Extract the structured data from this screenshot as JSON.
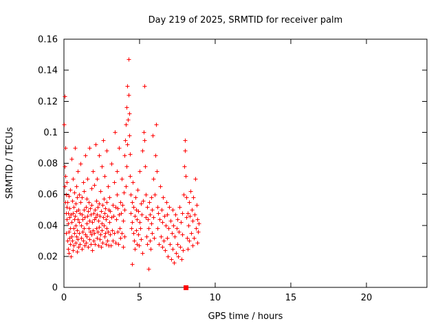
{
  "chart": {
    "title": "Day 219 of 2025, SRMTID for receiver palm",
    "xlabel": "GPS time / hours",
    "ylabel": "SRMTID / TECUs"
  },
  "chart_data": {
    "type": "scatter",
    "title": "Day 219 of 2025, SRMTID for receiver palm",
    "xlabel": "GPS time / hours",
    "ylabel": "SRMTID / TECUs",
    "xlim": [
      0,
      24
    ],
    "ylim": [
      0,
      0.16
    ],
    "xtick_values": [
      0,
      5,
      10,
      15,
      20
    ],
    "xtick_labels": [
      "0",
      "5",
      "10",
      "15",
      "20"
    ],
    "ytick_values": [
      0,
      0.02,
      0.04,
      0.06,
      0.08,
      0.1,
      0.12,
      0.14,
      0.16
    ],
    "ytick_labels": [
      "0",
      "0.02",
      "0.04",
      "0.06",
      "0.08",
      "0.1",
      "0.12",
      "0.14",
      "0.16"
    ],
    "grid": false,
    "legend": "none",
    "marker": "plus",
    "marker_color": "#ff0000",
    "square_points": [
      [
        8.05,
        0
      ]
    ],
    "points": [
      [
        0.02,
        0.105
      ],
      [
        0.03,
        0.123
      ],
      [
        0.05,
        0.078
      ],
      [
        0.06,
        0.065
      ],
      [
        0.08,
        0.055
      ],
      [
        0.09,
        0.09
      ],
      [
        0.1,
        0.072
      ],
      [
        0.12,
        0.048
      ],
      [
        0.13,
        0.06
      ],
      [
        0.15,
        0.035
      ],
      [
        0.16,
        0.052
      ],
      [
        0.18,
        0.044
      ],
      [
        0.2,
        0.068
      ],
      [
        0.21,
        0.03
      ],
      [
        0.23,
        0.055
      ],
      [
        0.25,
        0.041
      ],
      [
        0.26,
        0.025
      ],
      [
        0.28,
        0.048
      ],
      [
        0.3,
        0.036
      ],
      [
        0.32,
        0.059
      ],
      [
        0.33,
        0.022
      ],
      [
        0.35,
        0.045
      ],
      [
        0.37,
        0.032
      ],
      [
        0.38,
        0.051
      ],
      [
        0.4,
        0.028
      ],
      [
        0.42,
        0.063
      ],
      [
        0.43,
        0.038
      ],
      [
        0.45,
        0.047
      ],
      [
        0.47,
        0.02
      ],
      [
        0.48,
        0.033
      ],
      [
        0.5,
        0.083
      ],
      [
        0.52,
        0.042
      ],
      [
        0.53,
        0.056
      ],
      [
        0.55,
        0.03
      ],
      [
        0.57,
        0.048
      ],
      [
        0.58,
        0.024
      ],
      [
        0.6,
        0.07
      ],
      [
        0.62,
        0.038
      ],
      [
        0.63,
        0.052
      ],
      [
        0.65,
        0.027
      ],
      [
        0.67,
        0.044
      ],
      [
        0.68,
        0.061
      ],
      [
        0.7,
        0.035
      ],
      [
        0.72,
        0.09
      ],
      [
        0.73,
        0.046
      ],
      [
        0.75,
        0.029
      ],
      [
        0.77,
        0.054
      ],
      [
        0.78,
        0.04
      ],
      [
        0.8,
        0.065
      ],
      [
        0.82,
        0.033
      ],
      [
        0.83,
        0.049
      ],
      [
        0.85,
        0.023
      ],
      [
        0.87,
        0.058
      ],
      [
        0.88,
        0.037
      ],
      [
        0.9,
        0.044
      ],
      [
        0.92,
        0.075
      ],
      [
        0.93,
        0.031
      ],
      [
        0.95,
        0.05
      ],
      [
        0.97,
        0.026
      ],
      [
        0.98,
        0.042
      ],
      [
        1.0,
        0.06
      ],
      [
        1.02,
        0.035
      ],
      [
        1.04,
        0.048
      ],
      [
        1.06,
        0.028
      ],
      [
        1.08,
        0.055
      ],
      [
        1.1,
        0.08
      ],
      [
        1.12,
        0.04
      ],
      [
        1.14,
        0.032
      ],
      [
        1.16,
        0.047
      ],
      [
        1.18,
        0.025
      ],
      [
        1.2,
        0.058
      ],
      [
        1.22,
        0.036
      ],
      [
        1.24,
        0.044
      ],
      [
        1.26,
        0.068
      ],
      [
        1.28,
        0.03
      ],
      [
        1.3,
        0.05
      ],
      [
        1.32,
        0.038
      ],
      [
        1.34,
        0.062
      ],
      [
        1.36,
        0.027
      ],
      [
        1.38,
        0.045
      ],
      [
        1.4,
        0.085
      ],
      [
        1.42,
        0.034
      ],
      [
        1.44,
        0.052
      ],
      [
        1.46,
        0.029
      ],
      [
        1.48,
        0.041
      ],
      [
        1.5,
        0.057
      ],
      [
        1.52,
        0.033
      ],
      [
        1.54,
        0.046
      ],
      [
        1.56,
        0.07
      ],
      [
        1.58,
        0.026
      ],
      [
        1.6,
        0.049
      ],
      [
        1.62,
        0.038
      ],
      [
        1.64,
        0.055
      ],
      [
        1.66,
        0.031
      ],
      [
        1.68,
        0.043
      ],
      [
        1.7,
        0.09
      ],
      [
        1.72,
        0.036
      ],
      [
        1.74,
        0.051
      ],
      [
        1.76,
        0.028
      ],
      [
        1.78,
        0.047
      ],
      [
        1.8,
        0.064
      ],
      [
        1.82,
        0.034
      ],
      [
        1.84,
        0.053
      ],
      [
        1.86,
        0.024
      ],
      [
        1.88,
        0.042
      ],
      [
        1.9,
        0.075
      ],
      [
        1.92,
        0.037
      ],
      [
        1.94,
        0.048
      ],
      [
        1.96,
        0.03
      ],
      [
        1.98,
        0.044
      ],
      [
        2.0,
        0.066
      ],
      [
        2.02,
        0.035
      ],
      [
        2.04,
        0.05
      ],
      [
        2.06,
        0.028
      ],
      [
        2.08,
        0.045
      ],
      [
        2.1,
        0.092
      ],
      [
        2.12,
        0.038
      ],
      [
        2.14,
        0.056
      ],
      [
        2.16,
        0.032
      ],
      [
        2.18,
        0.047
      ],
      [
        2.2,
        0.07
      ],
      [
        2.22,
        0.036
      ],
      [
        2.24,
        0.052
      ],
      [
        2.26,
        0.027
      ],
      [
        2.28,
        0.043
      ],
      [
        2.3,
        0.085
      ],
      [
        2.32,
        0.039
      ],
      [
        2.34,
        0.054
      ],
      [
        2.36,
        0.031
      ],
      [
        2.38,
        0.046
      ],
      [
        2.4,
        0.062
      ],
      [
        2.42,
        0.034
      ],
      [
        2.44,
        0.049
      ],
      [
        2.46,
        0.026
      ],
      [
        2.48,
        0.041
      ],
      [
        2.5,
        0.078
      ],
      [
        2.52,
        0.037
      ],
      [
        2.54,
        0.053
      ],
      [
        2.56,
        0.029
      ],
      [
        2.58,
        0.045
      ],
      [
        2.6,
        0.095
      ],
      [
        2.62,
        0.04
      ],
      [
        2.64,
        0.057
      ],
      [
        2.66,
        0.033
      ],
      [
        2.68,
        0.048
      ],
      [
        2.7,
        0.072
      ],
      [
        2.72,
        0.035
      ],
      [
        2.74,
        0.051
      ],
      [
        2.76,
        0.028
      ],
      [
        2.78,
        0.044
      ],
      [
        2.8,
        0.088
      ],
      [
        2.82,
        0.038
      ],
      [
        2.84,
        0.055
      ],
      [
        2.86,
        0.03
      ],
      [
        2.88,
        0.046
      ],
      [
        2.9,
        0.065
      ],
      [
        2.92,
        0.036
      ],
      [
        2.94,
        0.05
      ],
      [
        2.96,
        0.027
      ],
      [
        2.98,
        0.042
      ],
      [
        3.0,
        0.058
      ],
      [
        3.03,
        0.034
      ],
      [
        3.06,
        0.049
      ],
      [
        3.09,
        0.027
      ],
      [
        3.12,
        0.045
      ],
      [
        3.15,
        0.08
      ],
      [
        3.18,
        0.037
      ],
      [
        3.21,
        0.053
      ],
      [
        3.24,
        0.03
      ],
      [
        3.27,
        0.046
      ],
      [
        3.3,
        0.068
      ],
      [
        3.33,
        0.035
      ],
      [
        3.36,
        0.1
      ],
      [
        3.39,
        0.052
      ],
      [
        3.42,
        0.029
      ],
      [
        3.45,
        0.044
      ],
      [
        3.48,
        0.06
      ],
      [
        3.5,
        0.075
      ],
      [
        3.53,
        0.036
      ],
      [
        3.56,
        0.051
      ],
      [
        3.59,
        0.028
      ],
      [
        3.62,
        0.047
      ],
      [
        3.65,
        0.09
      ],
      [
        3.68,
        0.038
      ],
      [
        3.71,
        0.055
      ],
      [
        3.74,
        0.032
      ],
      [
        3.77,
        0.048
      ],
      [
        3.8,
        0.07
      ],
      [
        3.83,
        0.035
      ],
      [
        3.86,
        0.053
      ],
      [
        3.89,
        0.026
      ],
      [
        3.92,
        0.043
      ],
      [
        3.95,
        0.061
      ],
      [
        3.98,
        0.033
      ],
      [
        4.0,
        0.085
      ],
      [
        4.02,
        0.05
      ],
      [
        4.05,
        0.095
      ],
      [
        4.08,
        0.065
      ],
      [
        4.1,
        0.105
      ],
      [
        4.12,
        0.078
      ],
      [
        4.15,
        0.116
      ],
      [
        4.18,
        0.092
      ],
      [
        4.2,
        0.13
      ],
      [
        4.22,
        0.108
      ],
      [
        4.25,
        0.147
      ],
      [
        4.28,
        0.124
      ],
      [
        4.3,
        0.112
      ],
      [
        4.32,
        0.098
      ],
      [
        4.35,
        0.086
      ],
      [
        4.38,
        0.072
      ],
      [
        4.4,
        0.06
      ],
      [
        4.42,
        0.048
      ],
      [
        4.45,
        0.038
      ],
      [
        4.48,
        0.055
      ],
      [
        4.5,
        0.015
      ],
      [
        4.52,
        0.042
      ],
      [
        4.55,
        0.068
      ],
      [
        4.58,
        0.035
      ],
      [
        4.6,
        0.052
      ],
      [
        4.63,
        0.03
      ],
      [
        4.66,
        0.046
      ],
      [
        4.69,
        0.025
      ],
      [
        4.72,
        0.058
      ],
      [
        4.75,
        0.037
      ],
      [
        4.78,
        0.05
      ],
      [
        4.81,
        0.028
      ],
      [
        4.84,
        0.044
      ],
      [
        4.87,
        0.063
      ],
      [
        4.9,
        0.034
      ],
      [
        4.93,
        0.049
      ],
      [
        4.96,
        0.027
      ],
      [
        4.99,
        0.042
      ],
      [
        5.02,
        0.075
      ],
      [
        5.05,
        0.038
      ],
      [
        5.08,
        0.054
      ],
      [
        5.11,
        0.031
      ],
      [
        5.14,
        0.047
      ],
      [
        5.17,
        0.022
      ],
      [
        5.2,
        0.088
      ],
      [
        5.23,
        0.056
      ],
      [
        5.26,
        0.1
      ],
      [
        5.3,
        0.13
      ],
      [
        5.33,
        0.095
      ],
      [
        5.36,
        0.078
      ],
      [
        5.39,
        0.06
      ],
      [
        5.42,
        0.045
      ],
      [
        5.45,
        0.033
      ],
      [
        5.48,
        0.052
      ],
      [
        5.51,
        0.028
      ],
      [
        5.54,
        0.044
      ],
      [
        5.57,
        0.012
      ],
      [
        5.6,
        0.038
      ],
      [
        5.63,
        0.055
      ],
      [
        5.66,
        0.03
      ],
      [
        5.69,
        0.047
      ],
      [
        5.72,
        0.025
      ],
      [
        5.75,
        0.041
      ],
      [
        5.78,
        0.058
      ],
      [
        5.81,
        0.035
      ],
      [
        5.84,
        0.05
      ],
      [
        5.87,
        0.098
      ],
      [
        5.9,
        0.07
      ],
      [
        5.93,
        0.045
      ],
      [
        5.96,
        0.032
      ],
      [
        6.0,
        0.06
      ],
      [
        6.04,
        0.085
      ],
      [
        6.08,
        0.105
      ],
      [
        6.12,
        0.075
      ],
      [
        6.16,
        0.052
      ],
      [
        6.2,
        0.038
      ],
      [
        6.24,
        0.048
      ],
      [
        6.28,
        0.028
      ],
      [
        6.32,
        0.044
      ],
      [
        6.36,
        0.065
      ],
      [
        6.4,
        0.033
      ],
      [
        6.44,
        0.05
      ],
      [
        6.48,
        0.026
      ],
      [
        6.52,
        0.042
      ],
      [
        6.56,
        0.058
      ],
      [
        6.6,
        0.03
      ],
      [
        6.64,
        0.046
      ],
      [
        6.68,
        0.024
      ],
      [
        6.72,
        0.04
      ],
      [
        6.76,
        0.055
      ],
      [
        6.8,
        0.032
      ],
      [
        6.84,
        0.047
      ],
      [
        6.88,
        0.02
      ],
      [
        6.92,
        0.038
      ],
      [
        6.96,
        0.052
      ],
      [
        7.0,
        0.028
      ],
      [
        7.04,
        0.043
      ],
      [
        7.08,
        0.018
      ],
      [
        7.12,
        0.035
      ],
      [
        7.16,
        0.05
      ],
      [
        7.2,
        0.025
      ],
      [
        7.24,
        0.04
      ],
      [
        7.28,
        0.016
      ],
      [
        7.32,
        0.033
      ],
      [
        7.36,
        0.047
      ],
      [
        7.4,
        0.022
      ],
      [
        7.44,
        0.038
      ],
      [
        7.48,
        0.028
      ],
      [
        7.52,
        0.044
      ],
      [
        7.56,
        0.02
      ],
      [
        7.6,
        0.036
      ],
      [
        7.64,
        0.052
      ],
      [
        7.68,
        0.026
      ],
      [
        7.72,
        0.042
      ],
      [
        7.76,
        0.018
      ],
      [
        7.8,
        0.034
      ],
      [
        7.84,
        0.048
      ],
      [
        7.88,
        0.024
      ],
      [
        7.92,
        0.06
      ],
      [
        7.96,
        0.078
      ],
      [
        8.0,
        0.095
      ],
      [
        8.02,
        0.088
      ],
      [
        8.05,
        0.072
      ],
      [
        8.08,
        0.058
      ],
      [
        8.11,
        0.045
      ],
      [
        8.14,
        0.032
      ],
      [
        8.17,
        0.048
      ],
      [
        8.2,
        0.025
      ],
      [
        8.23,
        0.04
      ],
      [
        8.26,
        0.055
      ],
      [
        8.29,
        0.03
      ],
      [
        8.32,
        0.046
      ],
      [
        8.36,
        0.062
      ],
      [
        8.4,
        0.035
      ],
      [
        8.44,
        0.05
      ],
      [
        8.48,
        0.027
      ],
      [
        8.52,
        0.043
      ],
      [
        8.56,
        0.058
      ],
      [
        8.6,
        0.032
      ],
      [
        8.64,
        0.047
      ],
      [
        8.68,
        0.07
      ],
      [
        8.72,
        0.038
      ],
      [
        8.76,
        0.053
      ],
      [
        8.8,
        0.029
      ],
      [
        8.84,
        0.044
      ],
      [
        8.88,
        0.036
      ],
      [
        8.92,
        0.041
      ]
    ]
  }
}
